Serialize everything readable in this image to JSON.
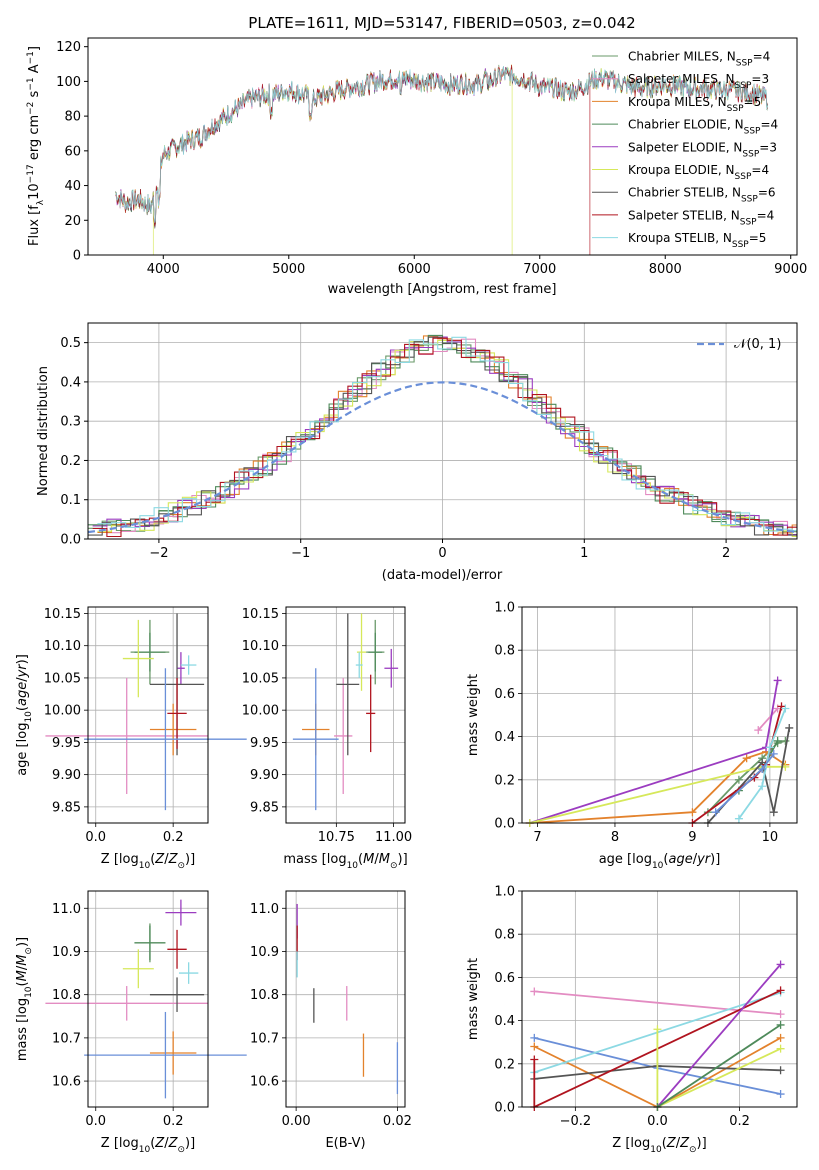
{
  "colors": {
    "Chabrier MILES": "#6a9a6a",
    "Salpeter MILES": "#e38cc2",
    "Kroupa MILES": "#e3822c",
    "Chabrier ELODIE": "#4e8a5a",
    "Salpeter ELODIE": "#9b3cc0",
    "Kroupa ELODIE": "#d6e85a",
    "Chabrier STELIB": "#555555",
    "Salpeter STELIB": "#b0141f",
    "Kroupa STELIB": "#8cd9e3",
    "gauss": "#6a8fd8",
    "blue": "#6a8fd8"
  },
  "chart_data": [
    {
      "type": "line",
      "title": "PLATE=1611, MJD=53147, FIBERID=0503, z=0.042",
      "xlabel": "wavelength [Angstrom, rest frame]",
      "ylabel_parts": [
        "Flux [f",
        "λ",
        "10",
        "−17",
        " erg cm",
        "−2",
        " s",
        "−1",
        " A",
        "−1",
        "]"
      ],
      "xlim": [
        3400,
        9050
      ],
      "ylim": [
        0,
        125
      ],
      "xticks": [
        "4000",
        "5000",
        "6000",
        "7000",
        "8000",
        "9000"
      ],
      "yticks": [
        "0",
        "20",
        "40",
        "60",
        "80",
        "100",
        "120"
      ],
      "legend": [
        {
          "name": "Chabrier MILES",
          "n": "4"
        },
        {
          "name": "Salpeter MILES",
          "n": "3"
        },
        {
          "name": "Kroupa MILES",
          "n": "5"
        },
        {
          "name": "Chabrier ELODIE",
          "n": "4"
        },
        {
          "name": "Salpeter ELODIE",
          "n": "3"
        },
        {
          "name": "Kroupa ELODIE",
          "n": "4"
        },
        {
          "name": "Chabrier STELIB",
          "n": "6"
        },
        {
          "name": "Salpeter STELIB",
          "n": "4"
        },
        {
          "name": "Kroupa STELIB",
          "n": "5"
        }
      ],
      "legend_suffix": "SSP",
      "spectrum": {
        "start": 3620,
        "end": 8820,
        "continuum_x": [
          3620,
          3700,
          3800,
          3900,
          3950,
          4000,
          4100,
          4200,
          4300,
          4400,
          4500,
          4600,
          4700,
          4800,
          4900,
          5000,
          5100,
          5200,
          5300,
          5400,
          5500,
          5600,
          5700,
          5800,
          5900,
          6000,
          6100,
          6200,
          6300,
          6400,
          6500,
          6600,
          6700,
          6800,
          6900,
          7000,
          7100,
          7200,
          7300,
          7400,
          7500,
          7600,
          7700,
          7800,
          7900,
          8000,
          8100,
          8200,
          8300,
          8400,
          8500,
          8600,
          8700,
          8820
        ],
        "continuum_y": [
          35,
          30,
          32,
          28,
          40,
          58,
          62,
          66,
          68,
          75,
          80,
          85,
          90,
          92,
          93,
          95,
          93,
          90,
          92,
          95,
          97,
          98,
          100,
          101,
          102,
          101,
          100,
          99,
          98,
          99,
          98,
          100,
          104,
          103,
          101,
          97,
          96,
          94,
          95,
          100,
          102,
          100,
          98,
          96,
          97,
          98,
          97,
          96,
          96,
          95,
          95,
          94,
          93,
          90
        ],
        "truncations": [
          {
            "series": "Kroupa ELODIE",
            "end": 3920
          },
          {
            "series": "Kroupa ELODIE",
            "end": 6780
          },
          {
            "series": "Salpeter STELIB",
            "end": 7400
          }
        ]
      }
    },
    {
      "type": "step",
      "xlabel": "(data-model)/error",
      "ylabel": "Normed distribution",
      "xlim": [
        -2.5,
        2.5
      ],
      "ylim": [
        0,
        0.55
      ],
      "xticks": [
        "−2",
        "−1",
        "0",
        "1",
        "2"
      ],
      "yticks": [
        "0.0",
        "0.1",
        "0.2",
        "0.3",
        "0.4",
        "0.5"
      ],
      "legend_gauss": "𝒩(0, 1)"
    },
    {
      "type": "scatter",
      "xlabel": "Z [log10(Z/Z⊙)]",
      "ylabel": "age  [log10(age/yr)]",
      "xlim": [
        -0.02,
        0.29
      ],
      "ylim": [
        9.825,
        10.16
      ],
      "xticks": [
        "0.0",
        "0.2"
      ],
      "yticks": [
        "9.85",
        "9.90",
        "9.95",
        "10.00",
        "10.05",
        "10.10",
        "10.15"
      ],
      "points": [
        {
          "series": "Chabrier MILES",
          "x": 0.14,
          "y": 10.09,
          "ex": 0.05,
          "ey": 0.05
        },
        {
          "series": "Salpeter MILES",
          "x": 0.08,
          "y": 9.96,
          "ex": 0.21,
          "ey": 0.09
        },
        {
          "series": "Kroupa MILES",
          "x": 0.2,
          "y": 9.97,
          "ex": 0.06,
          "ey": 0.04
        },
        {
          "series": "Chabrier ELODIE",
          "x": 0.14,
          "y": 10.09,
          "ex": 0.04,
          "ey": 0.03
        },
        {
          "series": "Salpeter ELODIE",
          "x": 0.22,
          "y": 10.065,
          "ex": 0.01,
          "ey": 0.025
        },
        {
          "series": "Kroupa ELODIE",
          "x": 0.11,
          "y": 10.08,
          "ex": 0.04,
          "ey": 0.06
        },
        {
          "series": "Chabrier STELIB",
          "x": 0.21,
          "y": 10.04,
          "ex": 0.07,
          "ey": 0.11
        },
        {
          "series": "Salpeter STELIB",
          "x": 0.21,
          "y": 9.995,
          "ex": 0.025,
          "ey": 0.055
        },
        {
          "series": "Kroupa STELIB",
          "x": 0.24,
          "y": 10.07,
          "ex": 0.02,
          "ey": 0.015
        },
        {
          "series": "blue",
          "x": 0.18,
          "y": 9.955,
          "ex": 0.21,
          "ey": 0.11
        }
      ]
    },
    {
      "type": "scatter",
      "xlabel": "mass [log10(M/M⊙)]",
      "ylabel": "",
      "xlim": [
        10.53,
        11.05
      ],
      "ylim": [
        9.825,
        10.16
      ],
      "xticks": [
        "10.75",
        "11.00"
      ],
      "yticks": [
        "9.85",
        "9.90",
        "9.95",
        "10.00",
        "10.05",
        "10.10",
        "10.15"
      ],
      "points": [
        {
          "series": "Chabrier MILES",
          "x": 10.92,
          "y": 10.09,
          "ex": 0.04,
          "ey": 0.05
        },
        {
          "series": "Salpeter MILES",
          "x": 10.78,
          "y": 9.96,
          "ex": 0.04,
          "ey": 0.09
        },
        {
          "series": "Kroupa MILES",
          "x": 10.66,
          "y": 9.97,
          "ex": 0.06,
          "ey": 0.04
        },
        {
          "series": "Chabrier ELODIE",
          "x": 10.92,
          "y": 10.09,
          "ex": 0.03,
          "ey": 0.03
        },
        {
          "series": "Salpeter ELODIE",
          "x": 10.99,
          "y": 10.065,
          "ex": 0.03,
          "ey": 0.03
        },
        {
          "series": "Kroupa ELODIE",
          "x": 10.86,
          "y": 10.09,
          "ex": 0.02,
          "ey": 0.06
        },
        {
          "series": "Chabrier STELIB",
          "x": 10.8,
          "y": 10.04,
          "ex": 0.05,
          "ey": 0.11
        },
        {
          "series": "Salpeter STELIB",
          "x": 10.9,
          "y": 9.995,
          "ex": 0.02,
          "ey": 0.06
        },
        {
          "series": "Kroupa STELIB",
          "x": 10.85,
          "y": 10.07,
          "ex": 0.015,
          "ey": 0.02
        },
        {
          "series": "blue",
          "x": 10.66,
          "y": 9.955,
          "ex": 0.1,
          "ey": 0.11
        }
      ]
    },
    {
      "type": "line",
      "xlabel": "age  [log10(age/yr)]",
      "ylabel": "mass weight",
      "xlim": [
        6.8,
        10.35
      ],
      "ylim": [
        0,
        1
      ],
      "xticks": [
        "7",
        "8",
        "9",
        "10"
      ],
      "yticks": [
        "0.0",
        "0.2",
        "0.4",
        "0.6",
        "0.8",
        "1.0"
      ],
      "series": [
        {
          "series": "Chabrier MILES",
          "x": [
            9.2,
            9.6,
            9.9,
            10.1,
            10.2
          ],
          "y": [
            0.05,
            0.2,
            0.3,
            0.37,
            0.38
          ]
        },
        {
          "series": "Salpeter MILES",
          "x": [
            9.85,
            10.1
          ],
          "y": [
            0.43,
            0.53
          ]
        },
        {
          "series": "Kroupa MILES",
          "x": [
            6.9,
            9.0,
            9.7,
            9.95,
            10.2
          ],
          "y": [
            0.0,
            0.05,
            0.3,
            0.33,
            0.27
          ]
        },
        {
          "series": "Chabrier ELODIE",
          "x": [
            9.6,
            9.9,
            10.1
          ],
          "y": [
            0.15,
            0.25,
            0.38
          ]
        },
        {
          "series": "Salpeter ELODIE",
          "x": [
            6.9,
            9.95,
            10.1
          ],
          "y": [
            0.0,
            0.35,
            0.66
          ]
        },
        {
          "series": "Kroupa ELODIE",
          "x": [
            6.9,
            9.9,
            10.2
          ],
          "y": [
            0.0,
            0.26,
            0.26
          ]
        },
        {
          "series": "Chabrier STELIB",
          "x": [
            9.2,
            9.9,
            10.05,
            10.25
          ],
          "y": [
            0.0,
            0.28,
            0.05,
            0.44
          ]
        },
        {
          "series": "Salpeter STELIB",
          "x": [
            9.0,
            9.8,
            9.95,
            10.15
          ],
          "y": [
            0.0,
            0.21,
            0.27,
            0.54
          ]
        },
        {
          "series": "Kroupa STELIB",
          "x": [
            9.6,
            9.9,
            10.0,
            10.2
          ],
          "y": [
            0.02,
            0.17,
            0.35,
            0.53
          ]
        },
        {
          "series": "blue",
          "x": [
            9.3,
            9.9,
            10.05
          ],
          "y": [
            0.05,
            0.25,
            0.32
          ]
        }
      ]
    },
    {
      "type": "scatter",
      "xlabel": "Z [log10(Z/Z⊙)]",
      "ylabel": "mass [log10(M/M⊙)]",
      "xlim": [
        -0.02,
        0.29
      ],
      "ylim": [
        10.54,
        11.04
      ],
      "xticks": [
        "0.0",
        "0.2"
      ],
      "yticks": [
        "10.6",
        "10.7",
        "10.8",
        "10.9",
        "11.0"
      ],
      "points": [
        {
          "series": "Chabrier MILES",
          "x": 0.14,
          "y": 10.92,
          "ex": 0.04,
          "ey": 0.045
        },
        {
          "series": "Salpeter MILES",
          "x": 0.08,
          "y": 10.78,
          "ex": 0.21,
          "ey": 0.04
        },
        {
          "series": "Kroupa MILES",
          "x": 0.2,
          "y": 10.665,
          "ex": 0.06,
          "ey": 0.05
        },
        {
          "series": "Chabrier ELODIE",
          "x": 0.14,
          "y": 10.92,
          "ex": 0.04,
          "ey": 0.04
        },
        {
          "series": "Salpeter ELODIE",
          "x": 0.22,
          "y": 10.99,
          "ex": 0.04,
          "ey": 0.03
        },
        {
          "series": "Kroupa ELODIE",
          "x": 0.11,
          "y": 10.86,
          "ex": 0.04,
          "ey": 0.045
        },
        {
          "series": "Chabrier STELIB",
          "x": 0.21,
          "y": 10.8,
          "ex": 0.07,
          "ey": 0.04
        },
        {
          "series": "Salpeter STELIB",
          "x": 0.21,
          "y": 10.905,
          "ex": 0.025,
          "ey": 0.045
        },
        {
          "series": "Kroupa STELIB",
          "x": 0.24,
          "y": 10.85,
          "ex": 0.025,
          "ey": 0.025
        },
        {
          "series": "blue",
          "x": 0.18,
          "y": 10.66,
          "ex": 0.21,
          "ey": 0.1
        }
      ]
    },
    {
      "type": "scatter",
      "xlabel": "E(B-V)",
      "ylabel": "",
      "xlim": [
        -0.002,
        0.0215
      ],
      "ylim": [
        10.54,
        11.04
      ],
      "xticks": [
        "0.00",
        "0.02"
      ],
      "yticks": [
        "10.6",
        "10.7",
        "10.8",
        "10.9",
        "11.0"
      ],
      "points": [
        {
          "series": "Salpeter ELODIE",
          "x": 0.0002,
          "y": 10.97,
          "ex": 0,
          "ey": 0.04
        },
        {
          "series": "Salpeter STELIB",
          "x": 0.0002,
          "y": 10.92,
          "ex": 0,
          "ey": 0.04
        },
        {
          "series": "Kroupa STELIB",
          "x": 0.0002,
          "y": 10.87,
          "ex": 0,
          "ey": 0.03
        },
        {
          "series": "Chabrier STELIB",
          "x": 0.0035,
          "y": 10.775,
          "ex": 0,
          "ey": 0.04
        },
        {
          "series": "Salpeter MILES",
          "x": 0.01,
          "y": 10.78,
          "ex": 0,
          "ey": 0.04
        },
        {
          "series": "Kroupa MILES",
          "x": 0.0133,
          "y": 10.66,
          "ex": 0,
          "ey": 0.05
        },
        {
          "series": "blue",
          "x": 0.02,
          "y": 10.63,
          "ex": 0,
          "ey": 0.06
        }
      ]
    },
    {
      "type": "line",
      "xlabel": "Z [log10(Z/Z⊙)]",
      "ylabel": "mass weight",
      "xlim": [
        -0.33,
        0.34
      ],
      "ylim": [
        0,
        1
      ],
      "xticks": [
        "−0.2",
        "0.0",
        "0.2"
      ],
      "yticks": [
        "0.0",
        "0.2",
        "0.4",
        "0.6",
        "0.8",
        "1.0"
      ],
      "series": [
        {
          "series": "Salpeter MILES",
          "x": [
            -0.3,
            0.3
          ],
          "y": [
            0.535,
            0.43
          ]
        },
        {
          "series": "blue",
          "x": [
            -0.3,
            0.0,
            0.3
          ],
          "y": [
            0.32,
            0.18,
            0.06
          ]
        },
        {
          "series": "Kroupa MILES",
          "x": [
            -0.3,
            0.0,
            0.3
          ],
          "y": [
            0.28,
            0.0,
            0.32
          ]
        },
        {
          "series": "Kroupa STELIB",
          "x": [
            -0.3,
            0.3
          ],
          "y": [
            0.16,
            0.53
          ]
        },
        {
          "series": "Chabrier STELIB",
          "x": [
            -0.3,
            0.0,
            0.3
          ],
          "y": [
            0.13,
            0.19,
            0.17
          ]
        },
        {
          "series": "Salpeter STELIB",
          "x": [
            -0.3,
            -0.3,
            0.3
          ],
          "y": [
            0.22,
            0.0,
            0.54
          ]
        },
        {
          "series": "Kroupa ELODIE",
          "x": [
            0.0,
            0.0,
            0.3
          ],
          "y": [
            0.36,
            0.0,
            0.27
          ]
        },
        {
          "series": "Salpeter ELODIE",
          "x": [
            0.0,
            0.3
          ],
          "y": [
            0.0,
            0.66
          ]
        },
        {
          "series": "Chabrier ELODIE",
          "x": [
            0.0,
            0.3
          ],
          "y": [
            0.0,
            0.38
          ]
        }
      ]
    }
  ]
}
